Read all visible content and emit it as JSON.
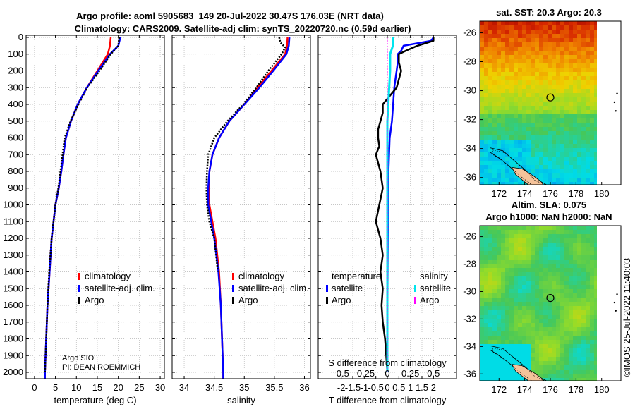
{
  "header": {
    "line1": "Argo profile: aoml 5905683_149 20-Jul-2022 30.47S 176.03E (NRT data)",
    "line2": "Climatology: CARS2009. Satellite-adj clim: synTS_20220720.nc (0.59d earlier)"
  },
  "colors": {
    "climatology": "#ff0000",
    "satellite": "#0000ff",
    "argo": "#000000",
    "sat_salinity": "#00e5ee",
    "argo_salinity": "#ff00ff",
    "grid": "#b4b4b4"
  },
  "chart_data": [
    {
      "type": "line",
      "name": "temperature-profile",
      "xlabel": "temperature (deg C)",
      "xlim": [
        -2,
        31
      ],
      "xticks": [
        "0",
        "5",
        "10",
        "15",
        "20",
        "25",
        "30"
      ],
      "ylim": [
        0,
        2050
      ],
      "yticks": [
        "0",
        "100",
        "200",
        "300",
        "400",
        "500",
        "600",
        "700",
        "800",
        "900",
        "1000",
        "1100",
        "1200",
        "1300",
        "1400",
        "1500",
        "1600",
        "1700",
        "1800",
        "1900",
        "2000"
      ],
      "legend": [
        "climatology",
        "satellite-adj. clim.",
        "Argo"
      ],
      "legend_position": "lower-right",
      "annotation": [
        "Argo SIO",
        "PI: DEAN ROEMMICH"
      ],
      "series": [
        {
          "name": "climatology",
          "depth": [
            0,
            50,
            100,
            200,
            300,
            400,
            500,
            600,
            700,
            800,
            900,
            1000,
            1200,
            1400,
            1600,
            1800,
            2000,
            2050
          ],
          "values": [
            18.2,
            18.0,
            17.5,
            15.0,
            12.5,
            10.3,
            8.7,
            7.5,
            6.9,
            6.4,
            5.8,
            5.0,
            4.1,
            3.6,
            3.1,
            2.8,
            2.5,
            2.5
          ]
        },
        {
          "name": "satellite-adj. clim.",
          "depth": [
            0,
            50,
            100,
            200,
            300,
            400,
            500,
            600,
            700,
            800,
            900,
            1000,
            1200,
            1400,
            1600,
            1800,
            2000,
            2050
          ],
          "values": [
            20.5,
            20.0,
            18.0,
            15.2,
            12.5,
            10.3,
            8.7,
            7.5,
            6.9,
            6.4,
            5.8,
            5.0,
            4.1,
            3.6,
            3.1,
            2.8,
            2.5,
            2.5
          ]
        },
        {
          "name": "Argo",
          "depth": [
            0,
            50,
            100,
            200,
            300,
            400,
            500,
            600,
            700,
            800,
            900,
            1000,
            1200,
            1400,
            1600,
            1800,
            2000
          ],
          "values": [
            20.2,
            20.0,
            18.2,
            15.5,
            12.6,
            10.5,
            8.6,
            7.2,
            6.7,
            6.2,
            5.7,
            5.0,
            4.1,
            3.5,
            3.1,
            2.8,
            2.5
          ]
        }
      ]
    },
    {
      "type": "line",
      "name": "salinity-profile",
      "xlabel": "salinity",
      "xlim": [
        33.8,
        36.1
      ],
      "xticks": [
        "34",
        "34.5",
        "35",
        "35.5",
        "36"
      ],
      "ylim": [
        0,
        2050
      ],
      "legend": [
        "climatology",
        "satellite-adj. clim.",
        "Argo"
      ],
      "legend_position": "lower-right",
      "series": [
        {
          "name": "climatology",
          "depth": [
            0,
            50,
            100,
            200,
            300,
            400,
            500,
            600,
            700,
            800,
            900,
            1000,
            1200,
            1400,
            1600,
            1800,
            2000,
            2050
          ],
          "values": [
            35.72,
            35.71,
            35.68,
            35.45,
            35.22,
            35.0,
            34.75,
            34.58,
            34.47,
            34.42,
            34.41,
            34.42,
            34.52,
            34.58,
            34.61,
            34.63,
            34.65,
            34.65
          ]
        },
        {
          "name": "satellite-adj. clim.",
          "depth": [
            0,
            50,
            100,
            200,
            300,
            400,
            500,
            600,
            700,
            800,
            900,
            1000,
            1200,
            1400,
            1600,
            1800,
            2000,
            2050
          ],
          "values": [
            35.75,
            35.74,
            35.7,
            35.48,
            35.25,
            35.0,
            34.75,
            34.58,
            34.47,
            34.42,
            34.4,
            34.4,
            34.5,
            34.57,
            34.61,
            34.63,
            34.65,
            34.65
          ]
        },
        {
          "name": "Argo",
          "depth": [
            0,
            30,
            60,
            100,
            200,
            300,
            400,
            500,
            600,
            700,
            800,
            900,
            1000,
            1100,
            1200,
            1400
          ],
          "values": [
            35.58,
            35.6,
            35.68,
            35.62,
            35.4,
            35.2,
            34.98,
            34.72,
            34.5,
            34.4,
            34.38,
            34.37,
            34.38,
            34.42,
            34.5,
            34.56
          ]
        }
      ]
    },
    {
      "type": "line",
      "name": "difference-profile",
      "xlabel": "T difference from climatology",
      "xlabel2": "S difference from climatology",
      "xlim": [
        -3,
        3
      ],
      "xticks": [
        "-2",
        "-1.5",
        "-1",
        "-0.5",
        "0",
        "0.5",
        "1",
        "1.5",
        "2"
      ],
      "xticks_s": [
        "-0.5",
        "-0.25",
        "0",
        "0.25",
        "0.5"
      ],
      "ylim": [
        0,
        2050
      ],
      "legend_temperature_title": "temperature",
      "legend_salinity_title": "salinity",
      "legend_temperature": [
        "satellite",
        "Argo"
      ],
      "legend_salinity": [
        "satellite",
        "Argo"
      ],
      "series": [
        {
          "name": "T satellite",
          "depth": [
            0,
            20,
            50,
            80,
            100,
            150,
            200,
            300,
            400,
            500,
            600,
            800,
            1000,
            1200,
            1500,
            2000
          ],
          "values": [
            2.0,
            1.9,
            0.7,
            0.6,
            0.45,
            0.45,
            0.4,
            0.3,
            0.25,
            0.2,
            0.1,
            0.05,
            0.03,
            0.02,
            0.01,
            0.0
          ]
        },
        {
          "name": "T Argo",
          "depth": [
            0,
            20,
            50,
            80,
            100,
            150,
            200,
            250,
            300,
            350,
            400,
            450,
            500,
            550,
            600,
            650,
            700,
            800,
            900,
            1000,
            1100,
            1200,
            1300,
            1400,
            1500,
            1600,
            1700,
            1800,
            1900,
            2000
          ],
          "values": [
            2.0,
            2.0,
            1.3,
            0.8,
            0.5,
            0.5,
            0.6,
            0.5,
            0.4,
            0.1,
            -0.2,
            -0.2,
            -0.3,
            -0.4,
            -0.4,
            -0.35,
            -0.5,
            -0.3,
            -0.2,
            -0.35,
            -0.5,
            -0.3,
            -0.2,
            -0.3,
            -0.2,
            -0.25,
            -0.2,
            -0.1,
            -0.05,
            0.0
          ]
        },
        {
          "name": "S satellite",
          "depth": [
            0,
            50,
            100,
            200,
            300,
            400,
            500,
            800,
            1200,
            1600,
            2000
          ],
          "values": [
            0.06,
            0.06,
            0.03,
            0.03,
            0.02,
            0.01,
            0.0,
            0.0,
            0.0,
            0.0,
            0.0
          ]
        },
        {
          "name": "S Argo",
          "depth": [
            0,
            2000
          ],
          "values": [
            0.0,
            0.0
          ]
        }
      ]
    },
    {
      "type": "heatmap",
      "name": "sst-map",
      "title": "sat. SST: 20.3 Argo: 20.3",
      "xticks": [
        "172",
        "174",
        "176",
        "178",
        "180"
      ],
      "yticks": [
        "-26",
        "-28",
        "-30",
        "-32",
        "-34",
        "-36"
      ],
      "xlim": [
        170.5,
        181.5
      ],
      "ylim": [
        -36.5,
        -25.2
      ],
      "marker": [
        176.0,
        -30.47
      ]
    },
    {
      "type": "heatmap",
      "name": "sla-map",
      "title": "Altim. SLA: 0.075",
      "subtitle": "Argo h1000: NaN h2000: NaN",
      "xticks": [
        "172",
        "174",
        "176",
        "178",
        "180"
      ],
      "yticks": [
        "-26",
        "-28",
        "-30",
        "-32",
        "-34",
        "-36"
      ],
      "xlim": [
        170.5,
        181.5
      ],
      "ylim": [
        -36.5,
        -25.2
      ],
      "marker": [
        176.0,
        -30.47
      ]
    }
  ],
  "footer": {
    "credit": "©IMOS 25-Jul-2022 11:40:03"
  }
}
